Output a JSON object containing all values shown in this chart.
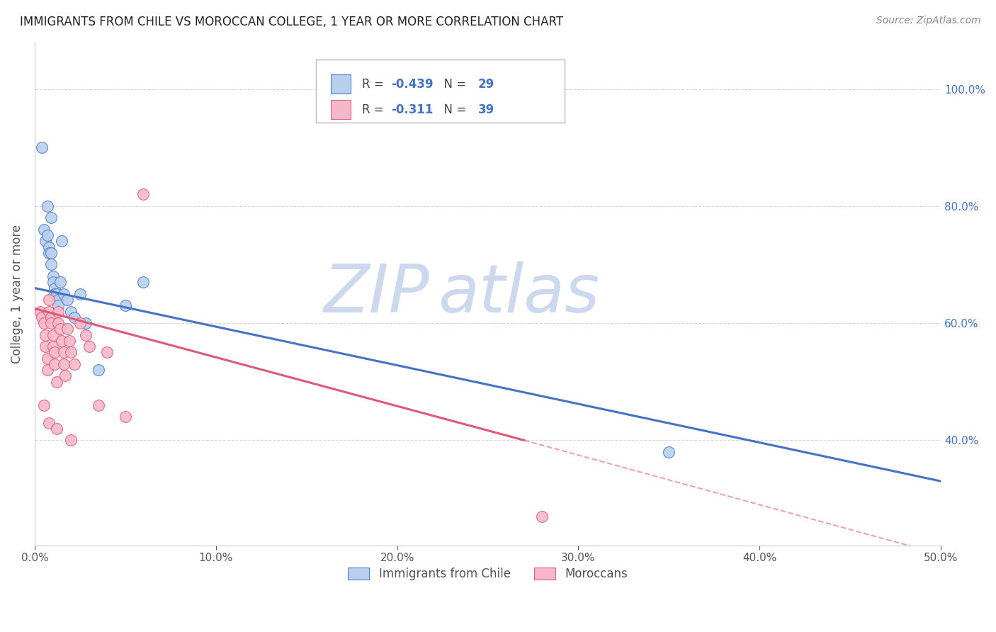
{
  "title": "IMMIGRANTS FROM CHILE VS MOROCCAN COLLEGE, 1 YEAR OR MORE CORRELATION CHART",
  "source": "Source: ZipAtlas.com",
  "ylabel": "College, 1 year or more",
  "xlim": [
    0.0,
    0.5
  ],
  "ylim": [
    0.22,
    1.08
  ],
  "x_tick_vals": [
    0.0,
    0.1,
    0.2,
    0.3,
    0.4,
    0.5
  ],
  "y_tick_vals": [
    0.4,
    0.6,
    0.8,
    1.0
  ],
  "blue_series": {
    "label": "Immigrants from Chile",
    "R": -0.439,
    "N": 29,
    "color": "#b8d0ee",
    "edge_color": "#5080c8",
    "line_color": "#4472c4",
    "x": [
      0.004,
      0.005,
      0.006,
      0.007,
      0.008,
      0.008,
      0.009,
      0.009,
      0.01,
      0.01,
      0.011,
      0.011,
      0.012,
      0.013,
      0.013,
      0.014,
      0.015,
      0.016,
      0.018,
      0.02,
      0.022,
      0.025,
      0.028,
      0.035,
      0.05,
      0.06,
      0.35,
      0.009,
      0.007
    ],
    "y": [
      0.9,
      0.76,
      0.74,
      0.75,
      0.73,
      0.72,
      0.72,
      0.7,
      0.68,
      0.67,
      0.66,
      0.65,
      0.65,
      0.64,
      0.63,
      0.67,
      0.74,
      0.65,
      0.64,
      0.62,
      0.61,
      0.65,
      0.6,
      0.52,
      0.63,
      0.67,
      0.38,
      0.78,
      0.8
    ]
  },
  "pink_series": {
    "label": "Moroccans",
    "R": -0.311,
    "N": 39,
    "color": "#f4b8c8",
    "edge_color": "#e06080",
    "line_color": "#e05878",
    "x": [
      0.003,
      0.004,
      0.005,
      0.006,
      0.006,
      0.007,
      0.007,
      0.008,
      0.008,
      0.009,
      0.009,
      0.01,
      0.01,
      0.011,
      0.011,
      0.012,
      0.013,
      0.013,
      0.014,
      0.015,
      0.016,
      0.016,
      0.017,
      0.018,
      0.019,
      0.02,
      0.022,
      0.025,
      0.028,
      0.03,
      0.035,
      0.04,
      0.05,
      0.06,
      0.28,
      0.005,
      0.008,
      0.012,
      0.02
    ],
    "y": [
      0.62,
      0.61,
      0.6,
      0.58,
      0.56,
      0.54,
      0.52,
      0.64,
      0.62,
      0.61,
      0.6,
      0.58,
      0.56,
      0.55,
      0.53,
      0.5,
      0.62,
      0.6,
      0.59,
      0.57,
      0.55,
      0.53,
      0.51,
      0.59,
      0.57,
      0.55,
      0.53,
      0.6,
      0.58,
      0.56,
      0.46,
      0.55,
      0.44,
      0.82,
      0.27,
      0.46,
      0.43,
      0.42,
      0.4
    ]
  },
  "blue_line": {
    "x0": 0.0,
    "y0": 0.66,
    "x1": 0.5,
    "y1": 0.33
  },
  "pink_line_solid": {
    "x0": 0.0,
    "y0": 0.625,
    "x1": 0.27,
    "y1": 0.4
  },
  "pink_line_dash": {
    "x0": 0.27,
    "y0": 0.4,
    "x1": 0.5,
    "y1": 0.205
  },
  "background_color": "#ffffff",
  "grid_color": "#d8d8d8",
  "watermark_zip": "ZIP",
  "watermark_atlas": "atlas",
  "watermark_color": "#ccd8ee"
}
